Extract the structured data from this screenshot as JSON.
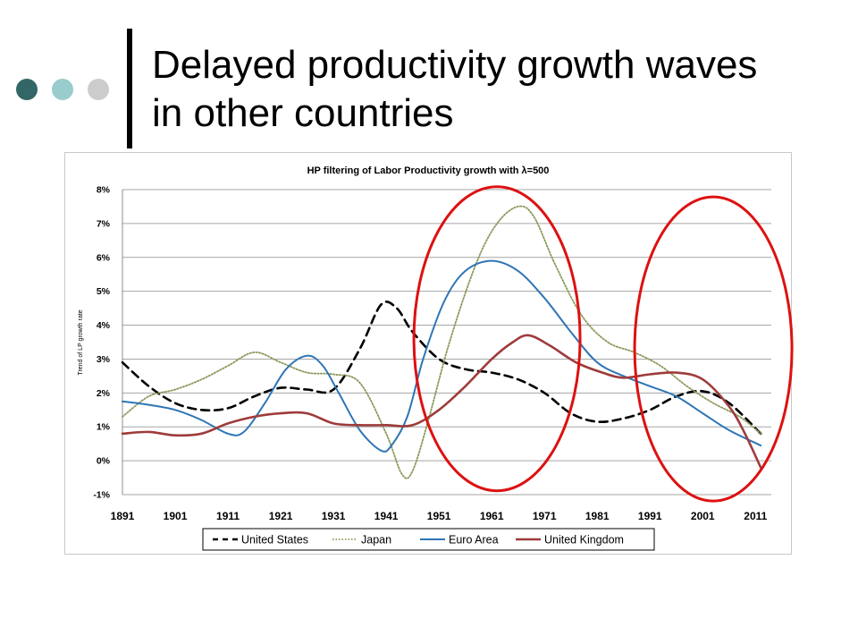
{
  "slide": {
    "title_line1": "Delayed productivity growth waves",
    "title_line2": "in other countries",
    "dot_colors": [
      "#336666",
      "#99cccc",
      "#cccccc"
    ],
    "accent_bar": "#000000"
  },
  "annotations": {
    "highlight_color": "#dd1111",
    "highlights": [
      {
        "label": "",
        "x_center": 1962,
        "y_center": 3.6
      },
      {
        "label": "",
        "x_center": 2003,
        "y_center": 3.3
      }
    ]
  },
  "chart_data": {
    "type": "line",
    "title": "HP filtering of Labor Productivity growth with λ=500",
    "xlabel": "",
    "ylabel": "Trend of LP growth rate",
    "x_ticks": [
      1891,
      1901,
      1911,
      1921,
      1931,
      1941,
      1951,
      1961,
      1971,
      1981,
      1991,
      2001,
      2011
    ],
    "x_tick_labels": [
      "1891",
      "1901",
      "1911",
      "1921",
      "1931",
      "1941",
      "1951",
      "1961",
      "1971",
      "1981",
      "1991",
      "2001",
      "2011"
    ],
    "xlim": [
      1891,
      2014
    ],
    "ylim": [
      -1,
      8
    ],
    "y_ticks": [
      -1,
      0,
      1,
      2,
      3,
      4,
      5,
      6,
      7,
      8
    ],
    "y_tick_labels": [
      "-1%",
      "0%",
      "1%",
      "2%",
      "3%",
      "4%",
      "5%",
      "6%",
      "7%",
      "8%"
    ],
    "grid": "horizontal",
    "legend_position": "bottom",
    "series": [
      {
        "name": "United States",
        "color": "#000000",
        "style": "dashed",
        "points": [
          [
            1891,
            2.9
          ],
          [
            1896,
            2.2
          ],
          [
            1901,
            1.7
          ],
          [
            1906,
            1.5
          ],
          [
            1911,
            1.55
          ],
          [
            1916,
            1.9
          ],
          [
            1921,
            2.15
          ],
          [
            1926,
            2.1
          ],
          [
            1931,
            2.1
          ],
          [
            1936,
            3.3
          ],
          [
            1940,
            4.6
          ],
          [
            1943,
            4.5
          ],
          [
            1946,
            3.8
          ],
          [
            1951,
            3.0
          ],
          [
            1956,
            2.7
          ],
          [
            1961,
            2.6
          ],
          [
            1966,
            2.4
          ],
          [
            1971,
            2.0
          ],
          [
            1976,
            1.4
          ],
          [
            1981,
            1.15
          ],
          [
            1986,
            1.25
          ],
          [
            1991,
            1.5
          ],
          [
            1996,
            1.9
          ],
          [
            2001,
            2.05
          ],
          [
            2006,
            1.7
          ],
          [
            2012,
            0.8
          ]
        ]
      },
      {
        "name": "Japan",
        "color": "#8a9a5b",
        "style": "dotted",
        "points": [
          [
            1891,
            1.3
          ],
          [
            1896,
            1.9
          ],
          [
            1901,
            2.1
          ],
          [
            1906,
            2.4
          ],
          [
            1911,
            2.8
          ],
          [
            1916,
            3.2
          ],
          [
            1921,
            2.9
          ],
          [
            1926,
            2.6
          ],
          [
            1931,
            2.55
          ],
          [
            1936,
            2.3
          ],
          [
            1941,
            0.8
          ],
          [
            1944,
            -0.4
          ],
          [
            1946,
            -0.3
          ],
          [
            1949,
            1.2
          ],
          [
            1953,
            3.5
          ],
          [
            1958,
            5.8
          ],
          [
            1962,
            7.0
          ],
          [
            1966,
            7.5
          ],
          [
            1969,
            7.2
          ],
          [
            1973,
            5.8
          ],
          [
            1978,
            4.3
          ],
          [
            1983,
            3.5
          ],
          [
            1988,
            3.2
          ],
          [
            1993,
            2.8
          ],
          [
            1998,
            2.2
          ],
          [
            2003,
            1.7
          ],
          [
            2008,
            1.3
          ],
          [
            2012,
            0.8
          ]
        ]
      },
      {
        "name": "Euro Area",
        "color": "#2e75b6",
        "style": "solid",
        "points": [
          [
            1891,
            1.75
          ],
          [
            1896,
            1.65
          ],
          [
            1901,
            1.5
          ],
          [
            1906,
            1.2
          ],
          [
            1911,
            0.8
          ],
          [
            1914,
            0.85
          ],
          [
            1918,
            1.7
          ],
          [
            1922,
            2.7
          ],
          [
            1926,
            3.1
          ],
          [
            1929,
            2.8
          ],
          [
            1932,
            2.0
          ],
          [
            1936,
            0.9
          ],
          [
            1940,
            0.3
          ],
          [
            1942,
            0.45
          ],
          [
            1945,
            1.3
          ],
          [
            1948,
            3.0
          ],
          [
            1952,
            4.7
          ],
          [
            1956,
            5.6
          ],
          [
            1961,
            5.9
          ],
          [
            1966,
            5.6
          ],
          [
            1971,
            4.8
          ],
          [
            1976,
            3.8
          ],
          [
            1981,
            2.9
          ],
          [
            1986,
            2.5
          ],
          [
            1991,
            2.2
          ],
          [
            1996,
            1.9
          ],
          [
            2001,
            1.4
          ],
          [
            2006,
            0.9
          ],
          [
            2012,
            0.45
          ]
        ]
      },
      {
        "name": "United Kingdom",
        "color": "#9e3b3b",
        "style": "solid",
        "points": [
          [
            1891,
            0.8
          ],
          [
            1896,
            0.85
          ],
          [
            1901,
            0.75
          ],
          [
            1906,
            0.8
          ],
          [
            1911,
            1.1
          ],
          [
            1916,
            1.3
          ],
          [
            1921,
            1.4
          ],
          [
            1926,
            1.4
          ],
          [
            1931,
            1.1
          ],
          [
            1936,
            1.05
          ],
          [
            1941,
            1.05
          ],
          [
            1946,
            1.05
          ],
          [
            1951,
            1.5
          ],
          [
            1956,
            2.2
          ],
          [
            1961,
            3.0
          ],
          [
            1965,
            3.5
          ],
          [
            1968,
            3.7
          ],
          [
            1972,
            3.4
          ],
          [
            1977,
            2.9
          ],
          [
            1982,
            2.6
          ],
          [
            1986,
            2.45
          ],
          [
            1991,
            2.55
          ],
          [
            1996,
            2.6
          ],
          [
            2001,
            2.4
          ],
          [
            2006,
            1.6
          ],
          [
            2009,
            0.8
          ],
          [
            2012,
            -0.2
          ]
        ]
      }
    ]
  }
}
